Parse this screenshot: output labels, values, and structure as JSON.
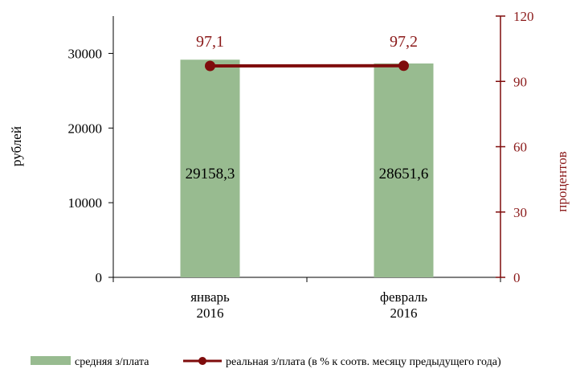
{
  "chart_data": {
    "type": "bar",
    "categories": [
      [
        "январь",
        "2016"
      ],
      [
        "февраль",
        "2016"
      ]
    ],
    "series": [
      {
        "name": "средняя з/плата",
        "kind": "bar",
        "axis": "left",
        "values": [
          29158.3,
          28651.6
        ],
        "labels": [
          "29158,3",
          "28651,6"
        ],
        "color": "#98bb90"
      },
      {
        "name": "реальная з/плата (в % к соотв. месяцу предыдущего года)",
        "kind": "line",
        "axis": "right",
        "values": [
          97.1,
          97.2
        ],
        "labels": [
          "97,1",
          "97,2"
        ],
        "color": "#7f0c0c"
      }
    ],
    "y_left": {
      "label": "рублей",
      "ylim": [
        0,
        35000
      ],
      "ticks": [
        0,
        10000,
        20000,
        30000
      ],
      "tick_labels": [
        "0",
        "10000",
        "20000",
        "30000"
      ],
      "color": "#000000"
    },
    "y_right": {
      "label": "процентов",
      "ylim": [
        0,
        120
      ],
      "ticks": [
        0,
        30,
        60,
        90,
        120
      ],
      "tick_labels": [
        "0",
        "30",
        "60",
        "90",
        "120"
      ],
      "color": "#8b1a1a"
    },
    "grid": false,
    "legend_position": "bottom"
  }
}
